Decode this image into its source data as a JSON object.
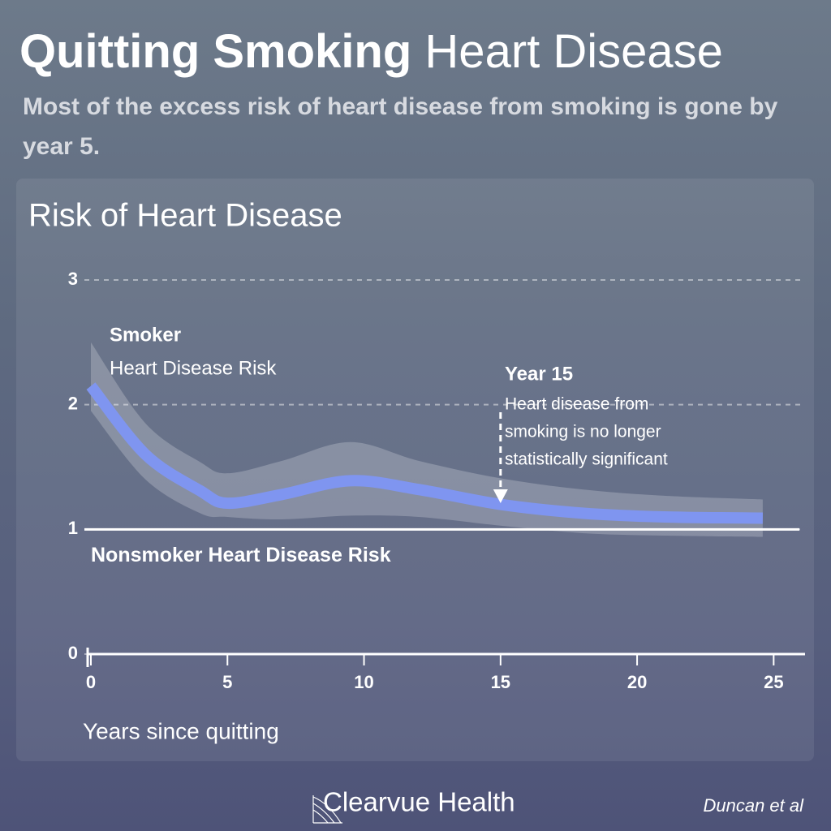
{
  "chart_data": {
    "type": "line",
    "title_bold": "Quitting Smoking",
    "title": "Heart Disease",
    "subtitle": "Most of the excess risk of heart disease from smoking is gone by year 5.",
    "chart_title": "Risk of Heart Disease",
    "x_label": "Years since quitting",
    "x": [
      0,
      2,
      4,
      5,
      7,
      9.5,
      12,
      15,
      18,
      21,
      24.6
    ],
    "series": [
      {
        "name": "Smoker",
        "detail": "Heart Disease Risk",
        "color": "#7f95f0",
        "values": [
          2.15,
          1.6,
          1.31,
          1.21,
          1.28,
          1.39,
          1.32,
          1.2,
          1.13,
          1.1,
          1.09
        ],
        "upper": [
          2.5,
          1.85,
          1.54,
          1.45,
          1.55,
          1.7,
          1.55,
          1.41,
          1.32,
          1.27,
          1.24
        ],
        "lower": [
          1.95,
          1.4,
          1.13,
          1.1,
          1.08,
          1.11,
          1.1,
          1.03,
          0.97,
          0.95,
          0.94
        ]
      }
    ],
    "baseline": {
      "value": 1,
      "label": "Nonsmoker Heart Disease Risk",
      "color": "#ffffff"
    },
    "annotation": {
      "x": 15,
      "title": "Year 15",
      "lines": [
        "Heart disease from",
        "smoking is no longer",
        "statistically significant"
      ]
    },
    "xlim": [
      0,
      26
    ],
    "xticks": [
      0,
      5,
      10,
      15,
      20,
      25
    ],
    "ylim": [
      0,
      3
    ],
    "yticks": [
      0,
      1,
      2,
      3
    ],
    "grid": true,
    "brand": "Clearvue Health",
    "source": "Duncan et al"
  }
}
